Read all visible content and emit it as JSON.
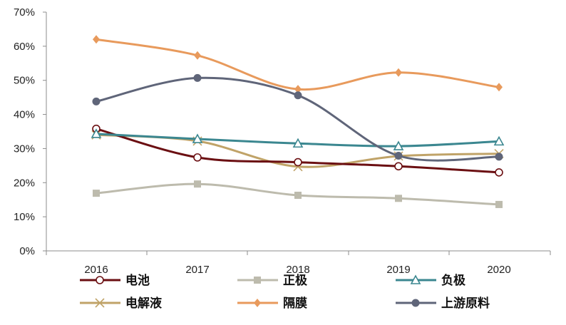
{
  "chart_data": {
    "type": "line",
    "title": "",
    "xlabel": "",
    "ylabel": "",
    "categories": [
      "2016",
      "2017",
      "2018",
      "2019",
      "2020"
    ],
    "ylim": [
      0,
      70
    ],
    "yticks": [
      0,
      10,
      20,
      30,
      40,
      50,
      60,
      70
    ],
    "ytick_labels": [
      "0%",
      "10%",
      "20%",
      "30%",
      "40%",
      "50%",
      "60%",
      "70%"
    ],
    "grid": false,
    "legend_position": "bottom",
    "series": [
      {
        "name": "电池",
        "values": [
          35.8,
          27.4,
          26.0,
          24.8,
          23.0
        ],
        "color": "#6b0f12",
        "marker": "open-circle"
      },
      {
        "name": "正极",
        "values": [
          16.9,
          19.6,
          16.3,
          15.4,
          13.6
        ],
        "color": "#bdbbad",
        "marker": "square"
      },
      {
        "name": "负极",
        "values": [
          34.3,
          32.8,
          31.5,
          30.7,
          32.1
        ],
        "color": "#3b8790",
        "marker": "open-triangle"
      },
      {
        "name": "电解液",
        "values": [
          34.0,
          32.2,
          24.7,
          27.8,
          28.5
        ],
        "color": "#c0a368",
        "marker": "x"
      },
      {
        "name": "隔膜",
        "values": [
          62.0,
          57.3,
          47.4,
          52.3,
          48.0
        ],
        "color": "#e89a5c",
        "marker": "diamond"
      },
      {
        "name": "上游原料",
        "values": [
          43.8,
          50.7,
          45.6,
          27.9,
          27.6
        ],
        "color": "#5f6579",
        "marker": "filled-circle"
      }
    ]
  }
}
